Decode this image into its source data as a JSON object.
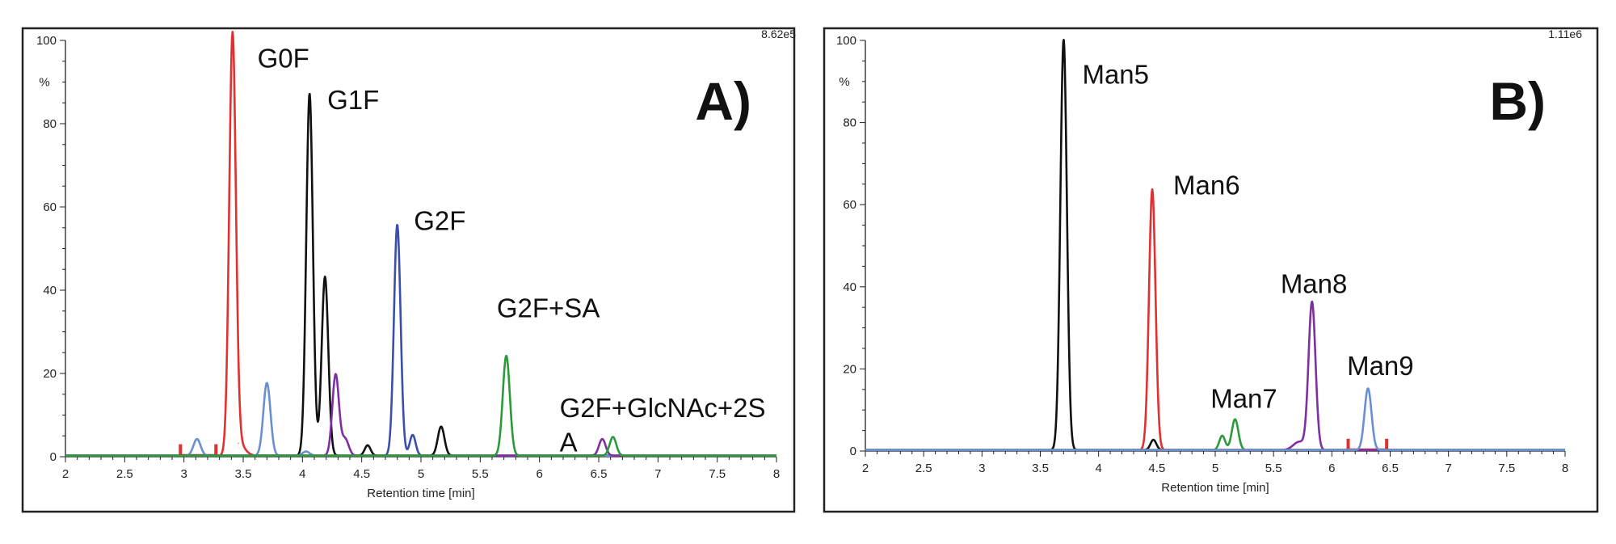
{
  "chart_data": [
    {
      "panel_label": "A)",
      "type": "line",
      "max_intensity": "8.62e5",
      "y_unit": "%",
      "xlabel": "Retention time [min]",
      "xlim": [
        2,
        8
      ],
      "ylim": [
        0,
        100
      ],
      "x_ticks": [
        "2",
        "2.5",
        "3",
        "3.5",
        "4",
        "4.5",
        "5",
        "5.5",
        "6",
        "6.5",
        "7",
        "7.5",
        "8"
      ],
      "y_ticks": [
        "0",
        "20",
        "40",
        "60",
        "80",
        "100"
      ],
      "annotations": [
        {
          "text": "G0F",
          "x": 3.62,
          "y": 93.5
        },
        {
          "text": "G1F",
          "x": 4.21,
          "y": 83.5
        },
        {
          "text": "G2F",
          "x": 4.94,
          "y": 54.5
        },
        {
          "text": "G2F+SA",
          "x": 5.64,
          "y": 33.5
        },
        {
          "text": "G2F+GlcNAc+2S",
          "x": 6.17,
          "y": 9.5
        },
        {
          "text": "A",
          "x": 6.17,
          "y": 1.3
        }
      ],
      "series": [
        {
          "color": "#e03030",
          "peaks": [
            {
              "x": 3.41,
              "y": 100,
              "w": 0.028
            },
            {
              "x": 3.46,
              "y": 3,
              "w": 0.05
            }
          ],
          "markers": [
            2.97,
            3.27
          ]
        },
        {
          "color": "#111111",
          "peaks": [
            {
              "x": 4.06,
              "y": 87,
              "w": 0.028
            },
            {
              "x": 4.19,
              "y": 43,
              "w": 0.028
            },
            {
              "x": 4.55,
              "y": 2.5,
              "w": 0.025
            },
            {
              "x": 5.17,
              "y": 7,
              "w": 0.028
            }
          ]
        },
        {
          "color": "#3a4fa8",
          "peaks": [
            {
              "x": 4.8,
              "y": 55.5,
              "w": 0.028
            },
            {
              "x": 4.93,
              "y": 5,
              "w": 0.025
            }
          ]
        },
        {
          "color": "#6a8fd0",
          "peaks": [
            {
              "x": 3.11,
              "y": 4,
              "w": 0.03
            },
            {
              "x": 3.7,
              "y": 17.5,
              "w": 0.03
            },
            {
              "x": 4.03,
              "y": 1,
              "w": 0.03
            }
          ]
        },
        {
          "color": "#7e2fa0",
          "peaks": [
            {
              "x": 4.28,
              "y": 19.5,
              "w": 0.028
            },
            {
              "x": 4.36,
              "y": 4,
              "w": 0.03
            },
            {
              "x": 6.53,
              "y": 4,
              "w": 0.028
            }
          ]
        },
        {
          "color": "#2a9a3a",
          "peaks": [
            {
              "x": 5.72,
              "y": 24,
              "w": 0.03
            },
            {
              "x": 6.62,
              "y": 4.5,
              "w": 0.028
            }
          ]
        }
      ]
    },
    {
      "panel_label": "B)",
      "type": "line",
      "max_intensity": "1.11e6",
      "y_unit": "%",
      "xlabel": "Retention time [min]",
      "xlim": [
        2,
        8
      ],
      "ylim": [
        0,
        100
      ],
      "x_ticks": [
        "2",
        "2.5",
        "3",
        "3.5",
        "4",
        "4.5",
        "5",
        "5.5",
        "6",
        "6.5",
        "7",
        "7.5",
        "8"
      ],
      "y_ticks": [
        "0",
        "20",
        "40",
        "60",
        "80",
        "100"
      ],
      "annotations": [
        {
          "text": "Man5",
          "x": 3.86,
          "y": 89.5
        },
        {
          "text": "Man6",
          "x": 4.64,
          "y": 62.5
        },
        {
          "text": "Man7",
          "x": 4.96,
          "y": 10.5
        },
        {
          "text": "Man8",
          "x": 5.56,
          "y": 38.5
        },
        {
          "text": "Man9",
          "x": 6.13,
          "y": 18.5
        }
      ],
      "series": [
        {
          "color": "#111111",
          "peaks": [
            {
              "x": 3.7,
              "y": 100,
              "w": 0.028
            },
            {
              "x": 4.47,
              "y": 2.5,
              "w": 0.025
            }
          ]
        },
        {
          "color": "#e03030",
          "peaks": [
            {
              "x": 4.46,
              "y": 63.5,
              "w": 0.028
            }
          ],
          "markers": [
            6.14,
            6.47
          ]
        },
        {
          "color": "#2a9a3a",
          "peaks": [
            {
              "x": 5.06,
              "y": 3.5,
              "w": 0.025
            },
            {
              "x": 5.17,
              "y": 7.5,
              "w": 0.028
            }
          ]
        },
        {
          "color": "#7e2fa0",
          "peaks": [
            {
              "x": 5.83,
              "y": 36,
              "w": 0.03
            },
            {
              "x": 5.72,
              "y": 2,
              "w": 0.05
            }
          ]
        },
        {
          "color": "#6a8fd0",
          "peaks": [
            {
              "x": 6.31,
              "y": 15,
              "w": 0.03
            }
          ]
        }
      ]
    }
  ]
}
